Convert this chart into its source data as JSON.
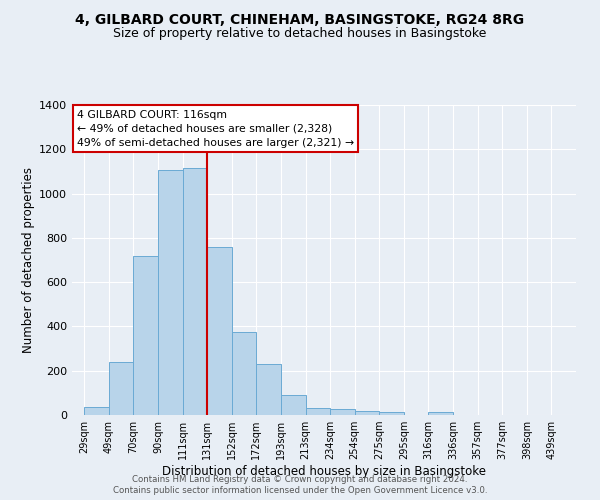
{
  "title": "4, GILBARD COURT, CHINEHAM, BASINGSTOKE, RG24 8RG",
  "subtitle": "Size of property relative to detached houses in Basingstoke",
  "xlabel": "Distribution of detached houses by size in Basingstoke",
  "ylabel": "Number of detached properties",
  "bar_labels": [
    "29sqm",
    "49sqm",
    "70sqm",
    "90sqm",
    "111sqm",
    "131sqm",
    "152sqm",
    "172sqm",
    "193sqm",
    "213sqm",
    "234sqm",
    "254sqm",
    "275sqm",
    "295sqm",
    "316sqm",
    "336sqm",
    "357sqm",
    "377sqm",
    "398sqm",
    "439sqm"
  ],
  "bar_values": [
    35,
    240,
    720,
    1105,
    1115,
    760,
    375,
    230,
    90,
    32,
    25,
    20,
    12,
    0,
    12,
    0,
    0,
    0,
    0,
    0
  ],
  "bar_color": "#b8d4ea",
  "bar_edgecolor": "#6aaad4",
  "vline_x": 5,
  "vline_color": "#cc0000",
  "ylim": [
    0,
    1400
  ],
  "yticks": [
    0,
    200,
    400,
    600,
    800,
    1000,
    1200,
    1400
  ],
  "annotation_title": "4 GILBARD COURT: 116sqm",
  "annotation_line1": "← 49% of detached houses are smaller (2,328)",
  "annotation_line2": "49% of semi-detached houses are larger (2,321) →",
  "annotation_box_facecolor": "#ffffff",
  "annotation_box_edgecolor": "#cc0000",
  "bg_color": "#e8eef5",
  "grid_color": "#ffffff",
  "footer1": "Contains HM Land Registry data © Crown copyright and database right 2024.",
  "footer2": "Contains public sector information licensed under the Open Government Licence v3.0."
}
